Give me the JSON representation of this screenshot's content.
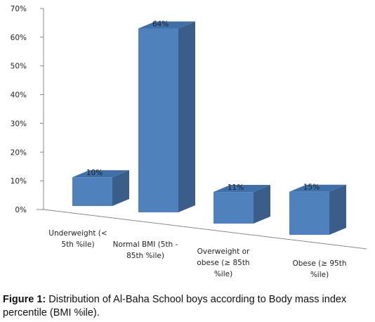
{
  "chart_data": {
    "type": "bar",
    "categories": [
      [
        "Underweight (<",
        "5th %ile)"
      ],
      [
        "Normal BMI (5th -",
        "85th %ile)"
      ],
      [
        "Overweight or",
        "obese (≥ 85th",
        "%ile)"
      ],
      [
        "Obese (≥ 95th",
        "%ile)"
      ]
    ],
    "values": [
      10,
      64,
      11,
      15
    ],
    "data_labels": [
      "10%",
      "64%",
      "11%",
      "15%"
    ],
    "ylim": [
      0,
      70
    ],
    "yticks": [
      "0%",
      "10%",
      "20%",
      "30%",
      "40%",
      "50%",
      "60%",
      "70%"
    ],
    "style": "3d-column",
    "colors": {
      "front": "#4f81bd",
      "side": "#3a5d8a",
      "top": "#3f6fa8",
      "axis": "#888888"
    }
  },
  "caption": {
    "figure_label": "Figure 1:",
    "text": "Distribution of Al-Baha School boys according to Body mass index percentile (BMI %ile)."
  }
}
